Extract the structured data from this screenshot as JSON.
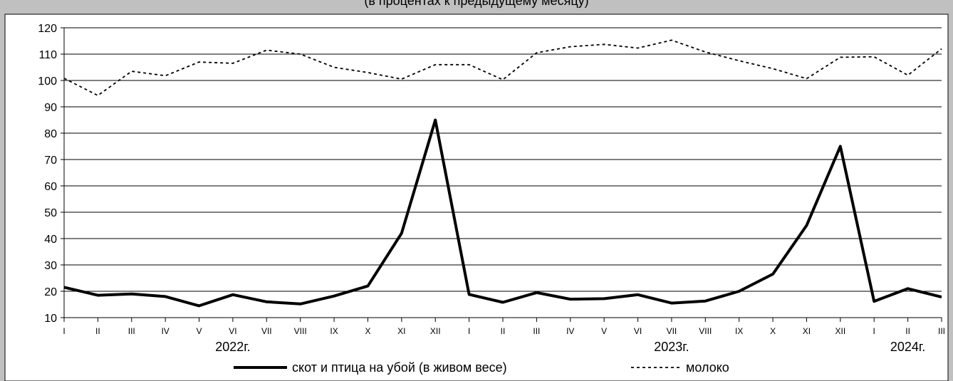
{
  "header_fragment": "(в процентах к предыдущему месяцу)",
  "chart_data": {
    "type": "line",
    "categories": [
      "I",
      "II",
      "III",
      "IV",
      "V",
      "VI",
      "VII",
      "VIII",
      "IX",
      "X",
      "XI",
      "XII",
      "I",
      "II",
      "III",
      "IV",
      "V",
      "VI",
      "VII",
      "VIII",
      "IX",
      "X",
      "XI",
      "XII",
      "I",
      "II",
      "III"
    ],
    "year_labels": [
      {
        "label": "2022г.",
        "index": 5
      },
      {
        "label": "2023г.",
        "index": 18
      },
      {
        "label": "2024г.",
        "index": 25
      }
    ],
    "ylim": [
      10,
      120
    ],
    "yticks": [
      10,
      20,
      30,
      40,
      50,
      60,
      70,
      80,
      90,
      100,
      110,
      120
    ],
    "grid": true,
    "legend_position": "bottom",
    "series": [
      {
        "name": "скот и птица на убой  (в живом весе)",
        "style": "solid",
        "color": "#000000",
        "values": [
          21.5,
          18.5,
          19.0,
          18.0,
          14.5,
          18.7,
          16.0,
          15.2,
          18.2,
          22.0,
          42.0,
          85.0,
          18.8,
          15.8,
          19.5,
          17.0,
          17.2,
          18.7,
          15.5,
          16.3,
          20.0,
          26.5,
          45.0,
          75.0,
          16.2,
          21.0,
          17.8
        ]
      },
      {
        "name": "молоко",
        "style": "dashed",
        "color": "#000000",
        "values": [
          100.8,
          94.3,
          103.5,
          101.8,
          107.0,
          106.5,
          111.5,
          110.0,
          105.0,
          103.0,
          100.5,
          106.0,
          106.0,
          100.3,
          110.5,
          112.8,
          113.7,
          112.3,
          115.3,
          110.8,
          107.5,
          104.5,
          100.7,
          108.8,
          109.0,
          102.0,
          112.0
        ]
      }
    ]
  }
}
